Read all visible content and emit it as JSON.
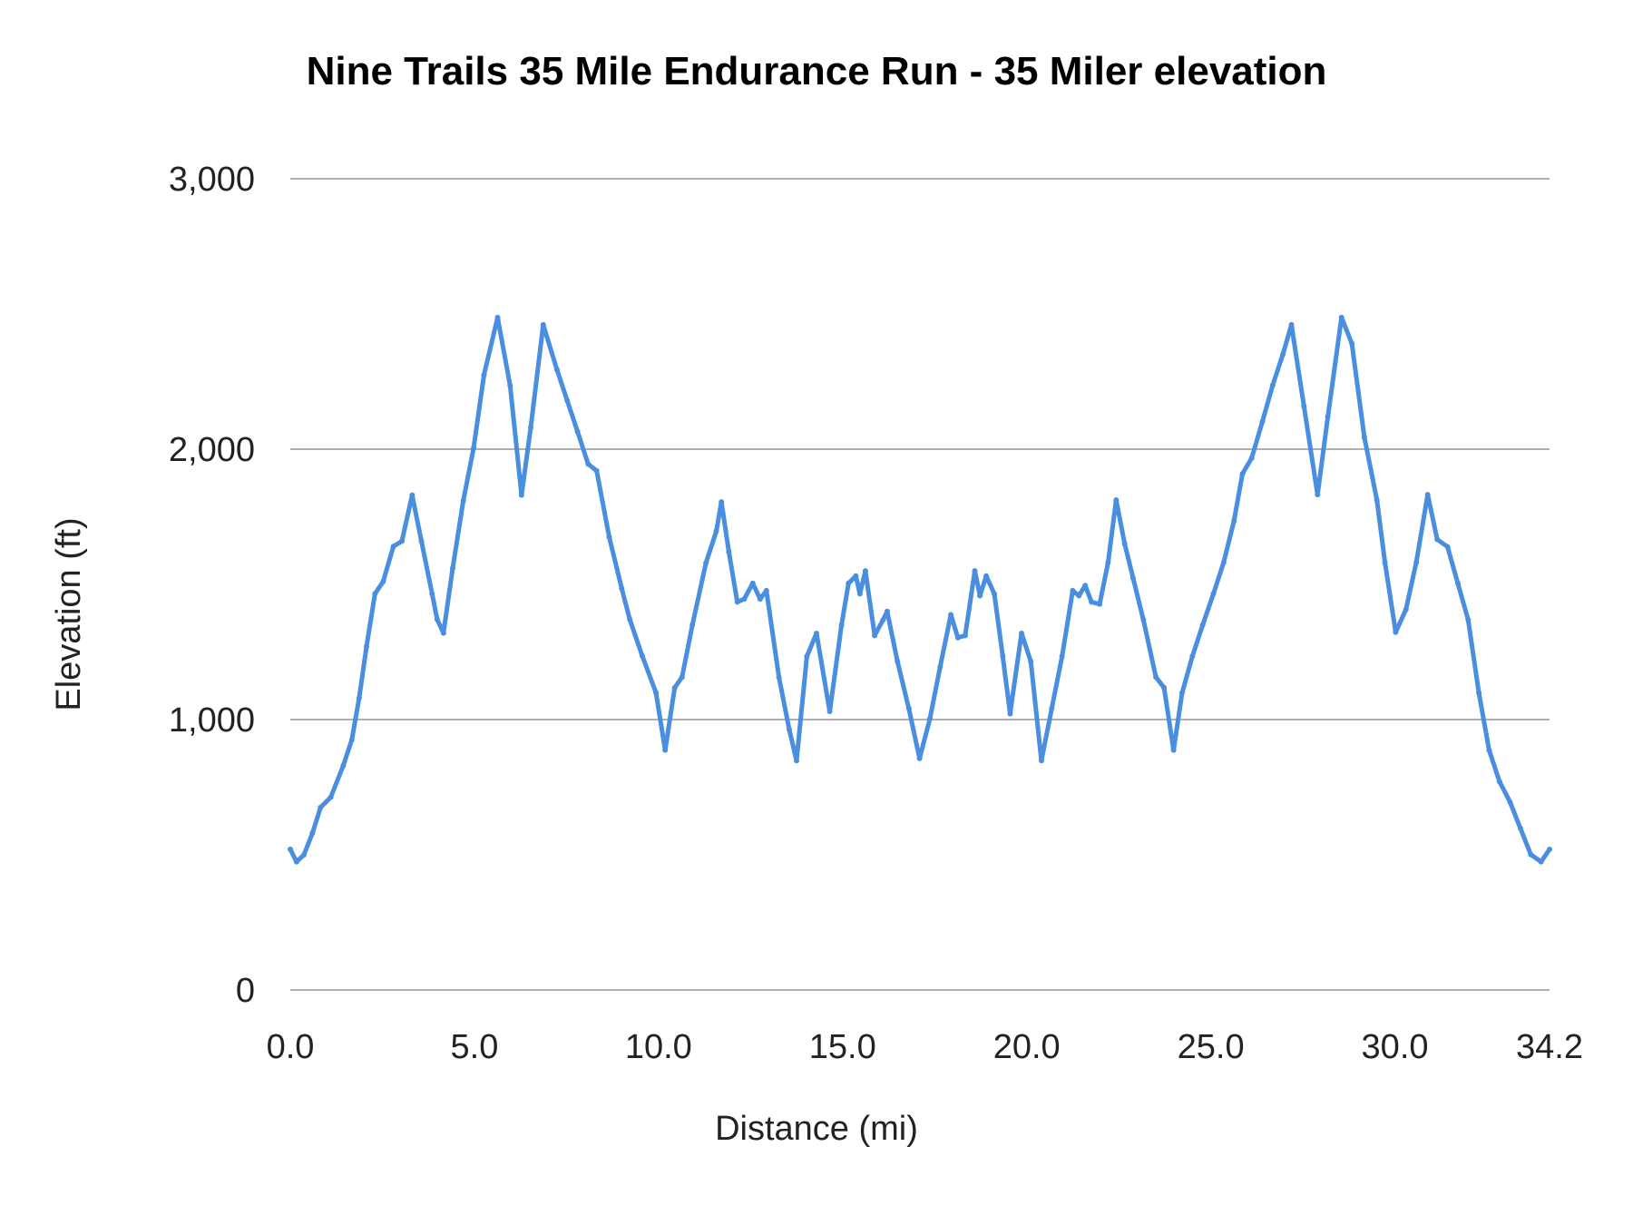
{
  "chart_data": {
    "type": "line",
    "title": "Nine Trails 35 Mile Endurance Run - 35 Miler elevation",
    "xlabel": "Distance (mi)",
    "ylabel": "Elevation (ft)",
    "xlim": [
      0,
      34.2
    ],
    "ylim": [
      0,
      3000
    ],
    "x_ticks": [
      "0.0",
      "5.0",
      "10.0",
      "15.0",
      "20.0",
      "25.0",
      "30.0",
      "34.2"
    ],
    "x_tick_values": [
      0,
      5,
      10,
      15,
      20,
      25,
      30,
      34.2
    ],
    "y_ticks": [
      "0",
      "1,000",
      "2,000",
      "3,000"
    ],
    "y_tick_values": [
      0,
      1000,
      2000,
      3000
    ],
    "grid": "horizontal",
    "legend": "none",
    "color": "#4a8ee0",
    "series": [
      {
        "x": [
          0,
          0.17,
          0.37,
          0.6,
          0.82,
          1.1,
          1.44,
          1.67,
          1.87,
          2.07,
          2.3,
          2.52,
          2.8,
          3.03,
          3.31,
          3.56,
          3.85,
          3.99,
          4.16,
          4.41,
          4.7,
          4.98,
          5.26,
          5.63,
          5.97,
          6.28,
          6.53,
          6.87,
          7.24,
          7.52,
          7.8,
          8.09,
          8.32,
          8.66,
          9.0,
          9.22,
          9.56,
          9.93,
          10.18,
          10.44,
          10.64,
          10.92,
          11.29,
          11.57,
          11.71,
          11.91,
          12.14,
          12.33,
          12.56,
          12.76,
          12.93,
          13.27,
          13.55,
          13.75,
          14.03,
          14.29,
          14.65,
          14.97,
          15.16,
          15.36,
          15.47,
          15.62,
          15.87,
          16.1,
          16.21,
          16.49,
          16.8,
          17.09,
          17.37,
          17.65,
          17.94,
          18.13,
          18.33,
          18.59,
          18.73,
          18.9,
          19.12,
          19.35,
          19.55,
          19.86,
          20.11,
          20.4,
          20.68,
          20.96,
          21.25,
          21.42,
          21.59,
          21.76,
          21.98,
          22.21,
          22.43,
          22.66,
          22.89,
          23.17,
          23.51,
          23.73,
          23.99,
          24.22,
          24.5,
          24.78,
          25.07,
          25.35,
          25.63,
          25.86,
          26.11,
          26.4,
          26.68,
          26.96,
          27.19,
          27.53,
          27.9,
          28.18,
          28.55,
          28.83,
          29.17,
          29.51,
          29.73,
          30.02,
          30.3,
          30.58,
          30.89,
          31.15,
          31.43,
          31.71,
          31.99,
          32.28,
          32.56,
          32.84,
          33.13,
          33.41,
          33.69,
          33.97,
          34.2
        ],
        "y": [
          520,
          474,
          500,
          580,
          675,
          713,
          830,
          925,
          1080,
          1270,
          1465,
          1510,
          1640,
          1660,
          1830,
          1660,
          1465,
          1370,
          1320,
          1560,
          1810,
          2005,
          2275,
          2487,
          2235,
          1830,
          2080,
          2460,
          2295,
          2180,
          2065,
          1945,
          1920,
          1675,
          1485,
          1370,
          1235,
          1100,
          887,
          1118,
          1157,
          1350,
          1580,
          1697,
          1805,
          1620,
          1435,
          1446,
          1504,
          1446,
          1477,
          1157,
          964,
          848,
          1234,
          1319,
          1030,
          1350,
          1504,
          1531,
          1465,
          1550,
          1311,
          1369,
          1400,
          1215,
          1041,
          856,
          1003,
          1195,
          1388,
          1303,
          1311,
          1550,
          1458,
          1531,
          1465,
          1234,
          1022,
          1319,
          1215,
          848,
          1041,
          1234,
          1477,
          1458,
          1496,
          1435,
          1427,
          1581,
          1812,
          1650,
          1523,
          1369,
          1157,
          1118,
          887,
          1099,
          1234,
          1350,
          1465,
          1581,
          1735,
          1909,
          1967,
          2101,
          2236,
          2352,
          2460,
          2159,
          1832,
          2121,
          2487,
          2391,
          2044,
          1812,
          1581,
          1323,
          1407,
          1581,
          1832,
          1666,
          1639,
          1504,
          1369,
          1099,
          887,
          771,
          694,
          598,
          501,
          474,
          520
        ]
      }
    ]
  }
}
